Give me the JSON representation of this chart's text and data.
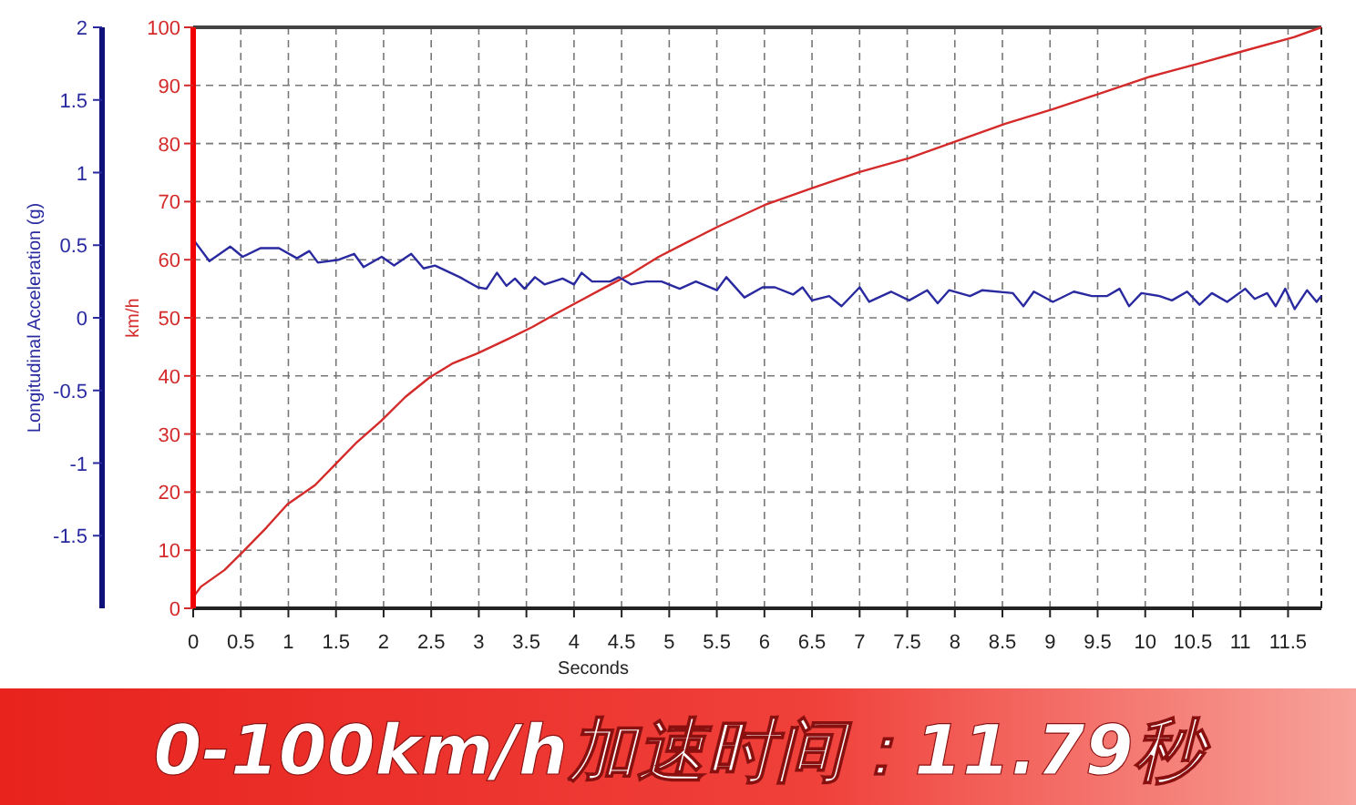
{
  "chart_data": {
    "type": "line",
    "xlabel": "Seconds",
    "ylabel": "km/h",
    "y2label": "Longitudinal Acceleration (g)",
    "xlim": [
      0,
      11.85
    ],
    "xticks": [
      0,
      0.5,
      1,
      1.5,
      2,
      2.5,
      3,
      3.5,
      4,
      4.5,
      5,
      5.5,
      6,
      6.5,
      7,
      7.5,
      8,
      8.5,
      9,
      9.5,
      10,
      10.5,
      11,
      11.5
    ],
    "ylim": [
      0,
      100
    ],
    "yticks": [
      0,
      10,
      20,
      30,
      40,
      50,
      60,
      70,
      80,
      90,
      100
    ],
    "y2lim": [
      -2,
      2
    ],
    "y2ticks": [
      -1.5,
      -1,
      -0.5,
      0,
      0.5,
      1,
      1.5,
      2
    ],
    "grid": true,
    "line_style": "solid",
    "marker": "none",
    "series": [
      {
        "color": "#d42a2a",
        "x": [
          0,
          0.08,
          0.33,
          0.52,
          0.77,
          0.99,
          1.28,
          1.5,
          1.72,
          1.97,
          2.23,
          2.48,
          2.73,
          2.99,
          3.3,
          3.56,
          3.81,
          4.06,
          4.32,
          4.57,
          4.89,
          5.2,
          5.5,
          6,
          6.5,
          7,
          7.52,
          8,
          8.53,
          9.03,
          9.54,
          10.05,
          10.55,
          11.05,
          11.56,
          11.85
        ],
        "values": [
          1.9,
          3.7,
          6.6,
          9.7,
          13.9,
          17.9,
          21.2,
          24.9,
          28.6,
          32.2,
          36.4,
          39.7,
          42.2,
          43.9,
          46.3,
          48.4,
          50.7,
          52.9,
          55.2,
          57.3,
          60.5,
          63.1,
          65.6,
          69.4,
          72.3,
          75.1,
          77.5,
          80.3,
          83.4,
          85.9,
          88.7,
          91.5,
          93.7,
          96,
          98.3,
          100
        ]
      },
      {
        "color": "#2a2aa0",
        "axis": "y2",
        "x": [
          0,
          0.17,
          0.39,
          0.52,
          0.71,
          0.9,
          1.09,
          1.22,
          1.31,
          1.53,
          1.69,
          1.79,
          1.98,
          2.11,
          2.29,
          2.42,
          2.54,
          2.8,
          2.99,
          3.08,
          3.19,
          3.29,
          3.38,
          3.48,
          3.59,
          3.69,
          3.88,
          4.0,
          4.08,
          4.19,
          4.38,
          4.47,
          4.6,
          4.76,
          4.92,
          5.11,
          5.28,
          5.5,
          5.6,
          5.79,
          5.98,
          6.11,
          6.3,
          6.4,
          6.5,
          6.68,
          6.81,
          7.0,
          7.1,
          7.33,
          7.52,
          7.71,
          7.82,
          7.94,
          8.16,
          8.29,
          8.61,
          8.72,
          8.83,
          9.03,
          9.25,
          9.44,
          9.6,
          9.73,
          9.83,
          9.96,
          10.15,
          10.28,
          10.44,
          10.57,
          10.7,
          10.86,
          11.05,
          11.15,
          11.28,
          11.37,
          11.47,
          11.57,
          11.7,
          11.8,
          11.85
        ],
        "values": [
          0.54,
          0.39,
          0.49,
          0.42,
          0.48,
          0.48,
          0.41,
          0.46,
          0.38,
          0.4,
          0.44,
          0.35,
          0.42,
          0.36,
          0.44,
          0.34,
          0.36,
          0.28,
          0.21,
          0.2,
          0.31,
          0.22,
          0.27,
          0.2,
          0.28,
          0.23,
          0.27,
          0.23,
          0.31,
          0.25,
          0.25,
          0.28,
          0.23,
          0.25,
          0.25,
          0.2,
          0.25,
          0.19,
          0.28,
          0.14,
          0.21,
          0.21,
          0.16,
          0.21,
          0.12,
          0.15,
          0.08,
          0.21,
          0.11,
          0.18,
          0.12,
          0.19,
          0.1,
          0.19,
          0.15,
          0.19,
          0.17,
          0.08,
          0.18,
          0.11,
          0.18,
          0.15,
          0.15,
          0.2,
          0.08,
          0.17,
          0.15,
          0.12,
          0.18,
          0.09,
          0.17,
          0.11,
          0.2,
          0.13,
          0.17,
          0.08,
          0.2,
          0.06,
          0.19,
          0.11,
          0.15
        ]
      }
    ],
    "annotations": [
      "0-100km/h加速时间：11.79秒"
    ]
  }
}
